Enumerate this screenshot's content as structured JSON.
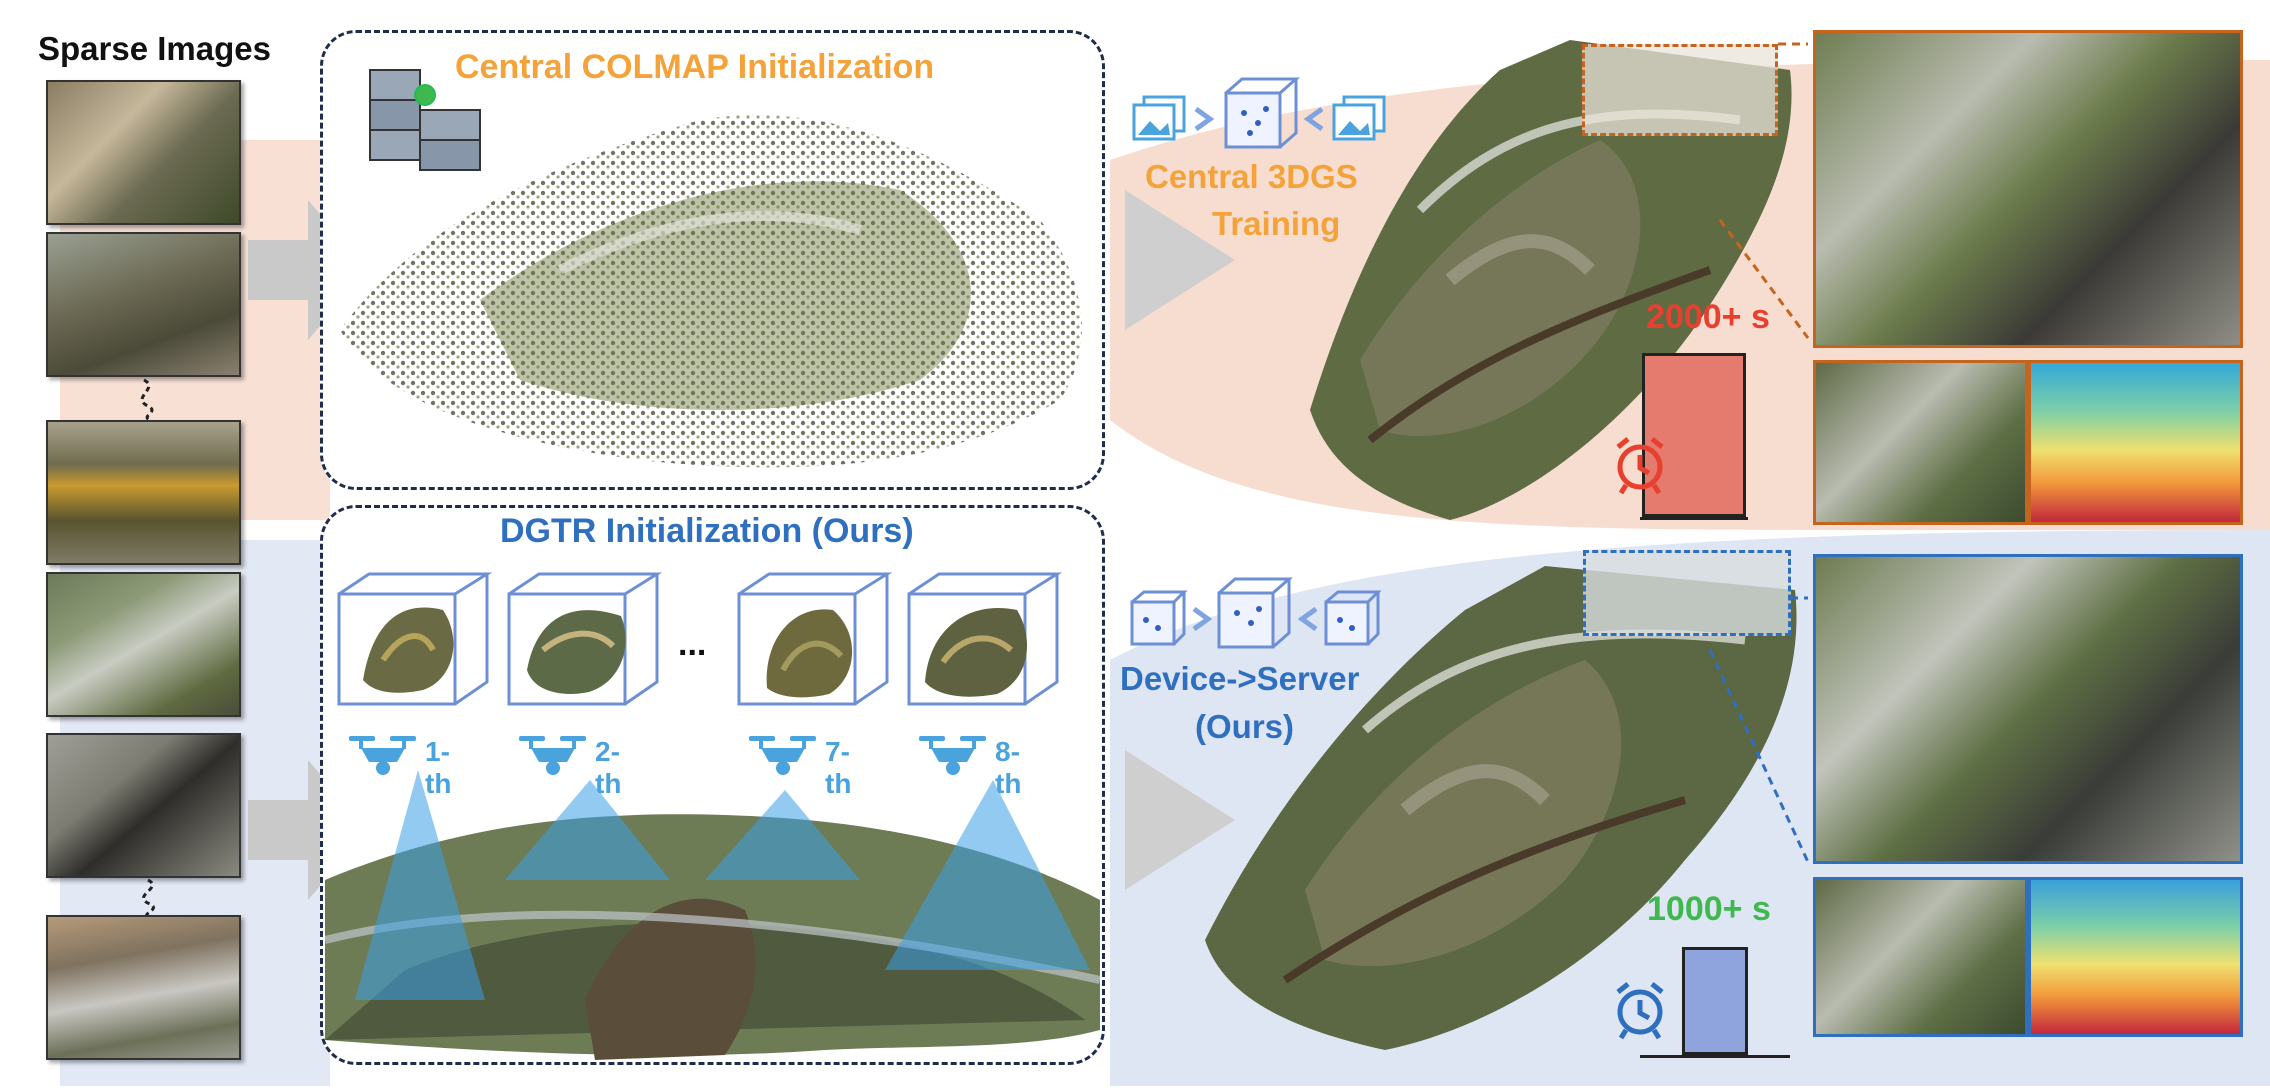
{
  "left_panel": {
    "title": "Sparse Images"
  },
  "top": {
    "colmap_title": "Central COLMAP Initialization",
    "training_label_line1": "Central 3DGS",
    "training_label_line2": "Training",
    "time_label": "2000+ s",
    "time_color": "#e8402f",
    "accent_color": "#f3a33a",
    "bar_color": "#e57a6f"
  },
  "bottom": {
    "dgtr_title": "DGTR Initialization (Ours)",
    "device_label_line1": "Device->Server",
    "device_label_line2": "(Ours)",
    "time_label": "1000+ s",
    "time_color": "#3fb84f",
    "accent_color": "#2f6fc0",
    "bar_color": "#8fa3dc",
    "drones": [
      {
        "label": "1-th"
      },
      {
        "label": "2-th"
      },
      {
        "label": "7-th"
      },
      {
        "label": "8-th"
      }
    ],
    "ellipsis": "..."
  },
  "icons": [
    "server-icon",
    "image-stack-icon",
    "point-cloud-cube-icon",
    "alarm-clock-icon",
    "drone-icon"
  ]
}
